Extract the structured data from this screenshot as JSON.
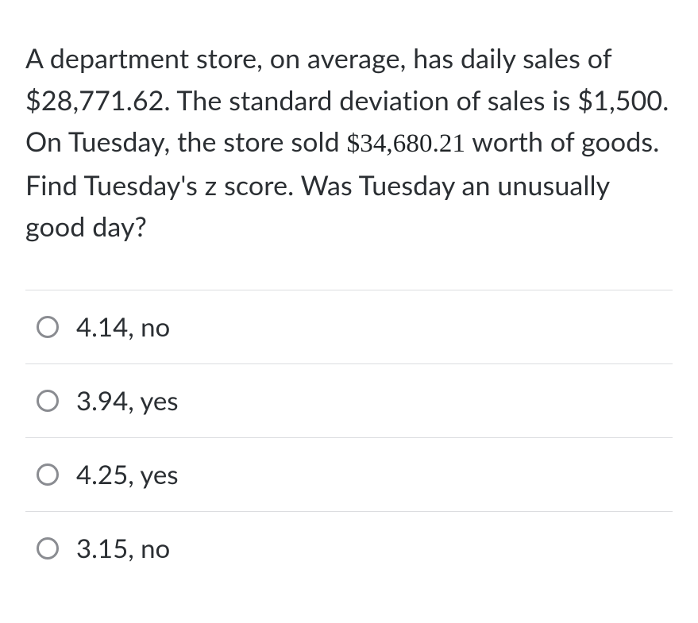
{
  "question": {
    "text_before": "A department store, on average, has daily sales of $28,771.62. The standard deviation of sales is $1,500. On Tuesday, the store sold ",
    "amount_emph": "$34,680.21",
    "text_after": " worth of goods. Find Tuesday's z score. Was Tuesday an unusually good day?"
  },
  "options": [
    {
      "label": "4.14, no"
    },
    {
      "label": "3.94, yes"
    },
    {
      "label": "4.25, yes"
    },
    {
      "label": "3.15, no"
    }
  ],
  "colors": {
    "text": "#2b2f33",
    "divider": "#dcdde0",
    "radio_border": "#8a8c91",
    "background": "#ffffff"
  },
  "typography": {
    "question_fontsize": 34,
    "option_fontsize": 33,
    "line_height": 1.55
  }
}
